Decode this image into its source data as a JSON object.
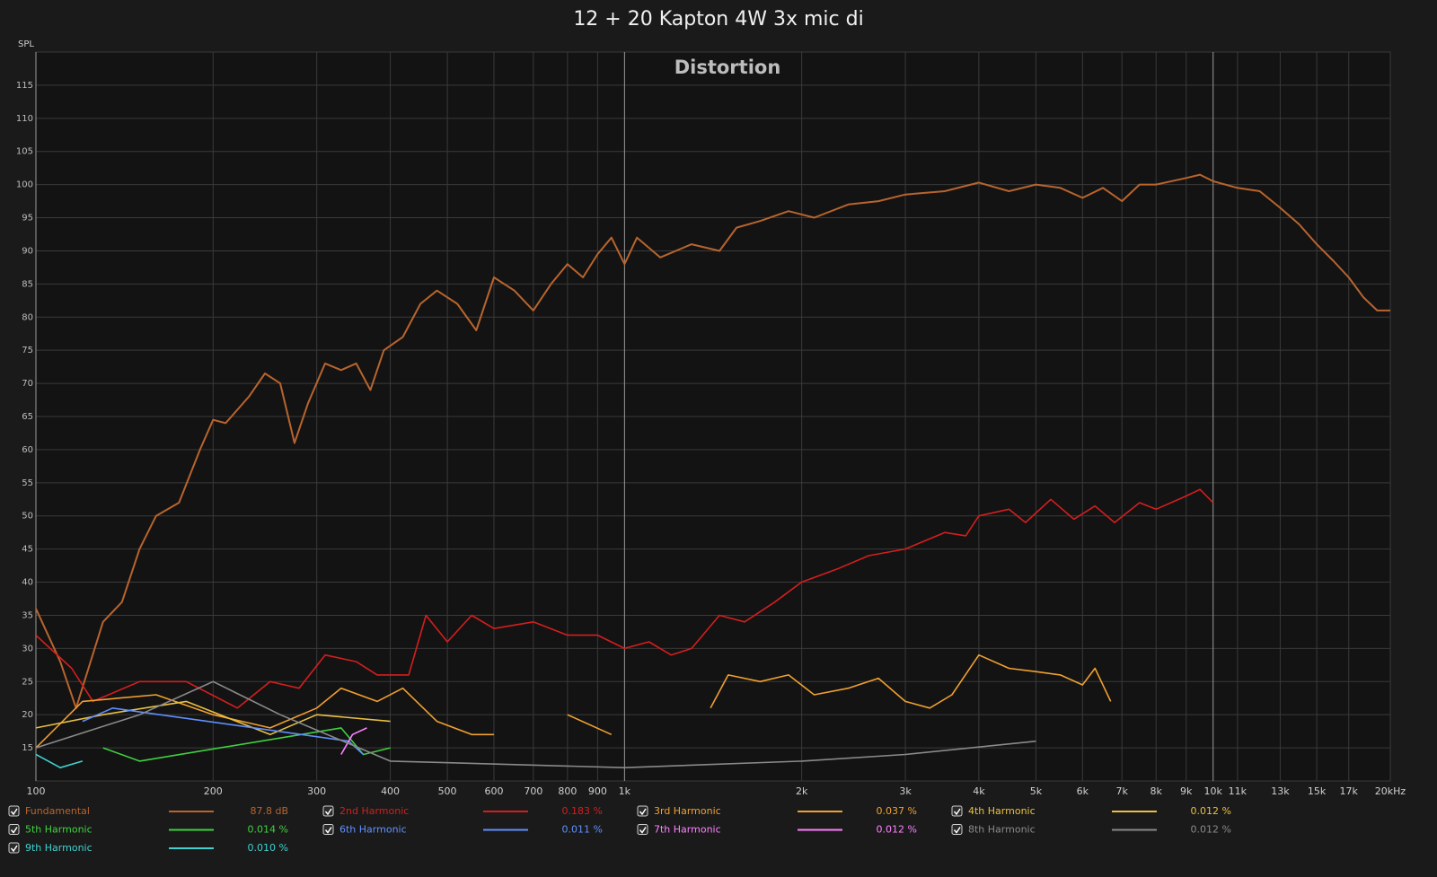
{
  "chart_data": {
    "type": "line",
    "title": "12 + 20 Kapton 4W 3x mic di",
    "subtitle": "Distortion",
    "y_label": "SPL",
    "log_x": true,
    "grid": true,
    "xlim": [
      100,
      20000
    ],
    "ylim": [
      10,
      120
    ],
    "xticks": [
      100,
      200,
      300,
      400,
      500,
      600,
      700,
      800,
      900,
      {
        "value": 1000,
        "label": "1k"
      },
      {
        "value": 2000,
        "label": "2k"
      },
      {
        "value": 3000,
        "label": "3k"
      },
      {
        "value": 4000,
        "label": "4k"
      },
      {
        "value": 5000,
        "label": "5k"
      },
      {
        "value": 6000,
        "label": "6k"
      },
      {
        "value": 7000,
        "label": "7k"
      },
      {
        "value": 8000,
        "label": "8k"
      },
      {
        "value": 9000,
        "label": "9k"
      },
      {
        "value": 10000,
        "label": "10k"
      },
      {
        "value": 11000,
        "label": "11k"
      },
      {
        "value": 13000,
        "label": "13k"
      },
      {
        "value": 15000,
        "label": "15k"
      },
      {
        "value": 17000,
        "label": "17k"
      },
      {
        "value": 20000,
        "label": "20kHz"
      }
    ],
    "yticks": [
      15,
      20,
      25,
      30,
      35,
      40,
      45,
      50,
      55,
      60,
      65,
      70,
      75,
      80,
      85,
      90,
      95,
      100,
      105,
      110,
      115
    ],
    "series": [
      {
        "name": "Fundamental",
        "reading": "87.8 dB",
        "color": "#b8642e",
        "x": [
          100,
          110,
          117,
          130,
          140,
          150,
          160,
          175,
          190,
          200,
          210,
          230,
          245,
          260,
          275,
          290,
          310,
          330,
          350,
          370,
          390,
          420,
          450,
          480,
          520,
          560,
          600,
          650,
          700,
          750,
          800,
          850,
          900,
          950,
          1000,
          1050,
          1150,
          1300,
          1450,
          1550,
          1700,
          1900,
          2100,
          2400,
          2700,
          3000,
          3500,
          4000,
          4500,
          5000,
          5500,
          6000,
          6500,
          7000,
          7500,
          8000,
          9000,
          9500,
          10000,
          11000,
          12000,
          13000,
          14000,
          15000,
          16000,
          17000,
          18000,
          19000,
          20000
        ],
        "values": [
          36,
          28,
          21,
          34,
          37,
          45,
          50,
          52,
          60,
          64.5,
          64,
          68,
          71.5,
          70,
          61,
          67,
          73,
          72,
          73,
          69,
          75,
          77,
          82,
          84,
          82,
          78,
          86,
          84,
          81,
          85,
          88,
          86,
          89.5,
          92,
          88,
          92,
          89,
          91,
          90,
          93.5,
          94.5,
          96,
          95,
          97,
          97.5,
          98.5,
          99,
          100.3,
          99,
          100,
          99.5,
          98,
          99.5,
          97.5,
          100,
          100,
          101,
          101.5,
          100.5,
          99.5,
          99,
          96.5,
          94,
          91,
          88.5,
          86,
          83,
          81,
          81
        ]
      },
      {
        "name": "2nd Harmonic",
        "reading": "0.183 %",
        "color": "#d41e1e",
        "x": [
          100,
          115,
          125,
          150,
          180,
          220,
          250,
          280,
          310,
          350,
          380,
          430,
          460,
          500,
          550,
          600,
          700,
          800,
          900,
          1000,
          1100,
          1200,
          1300,
          1450,
          1600,
          1800,
          2000,
          2300,
          2600,
          3000,
          3500,
          3800,
          4000,
          4500,
          4800,
          5300,
          5800,
          6300,
          6800,
          7500,
          8000,
          9000,
          9500,
          10000
        ],
        "values": [
          32,
          27,
          22,
          25,
          25,
          21,
          25,
          24,
          29,
          28,
          26,
          26,
          35,
          31,
          35,
          33,
          34,
          32,
          32,
          30,
          31,
          29,
          30,
          35,
          34,
          37,
          40,
          42,
          44,
          45,
          47.5,
          47,
          50,
          51,
          49,
          52.5,
          49.5,
          51.5,
          49,
          52,
          51,
          53,
          54,
          52
        ]
      },
      {
        "name": "3rd Harmonic",
        "reading": "0.037 %",
        "color": "#f0a030",
        "x": [
          100,
          120,
          160,
          200,
          250,
          300,
          330,
          380,
          420,
          480,
          550,
          600,
          650,
          800,
          950,
          1200,
          1400,
          1500,
          1700,
          1900,
          2100,
          2400,
          2700,
          3000,
          3300,
          3600,
          4000,
          4500,
          5000,
          5500,
          6000,
          6300,
          6700
        ],
        "values": [
          15,
          22,
          23,
          20,
          18,
          21,
          24,
          22,
          24,
          19,
          17,
          17,
          null,
          20,
          17,
          null,
          21,
          26,
          25,
          26,
          23,
          24,
          25.5,
          22,
          21,
          23,
          29,
          27,
          26.5,
          26,
          24.5,
          27,
          22
        ]
      },
      {
        "name": "4th Harmonic",
        "reading": "0.012 %",
        "color": "#e8c040",
        "x": [
          100,
          130,
          180,
          250,
          300,
          400
        ],
        "values": [
          18,
          20,
          22,
          17,
          20,
          19
        ]
      },
      {
        "name": "5th Harmonic",
        "reading": "0.014 %",
        "color": "#40d040",
        "x": [
          130,
          150,
          330,
          360,
          400
        ],
        "values": [
          15,
          13,
          18,
          14,
          15
        ]
      },
      {
        "name": "6th Harmonic",
        "reading": "0.011 %",
        "color": "#6090ff",
        "x": [
          120,
          135,
          340,
          360
        ],
        "values": [
          19,
          21,
          16,
          14
        ]
      },
      {
        "name": "7th Harmonic",
        "reading": "0.012 %",
        "color": "#ff80ff",
        "x": [
          330,
          345,
          365
        ],
        "values": [
          14,
          17,
          18
        ]
      },
      {
        "name": "8th Harmonic",
        "reading": "0.012 %",
        "color": "#8a8a8a",
        "x": [
          100,
          150,
          200,
          260,
          400,
          1000,
          2000,
          3000,
          5000
        ],
        "values": [
          15,
          20,
          25,
          20,
          13,
          12,
          13,
          14,
          16
        ]
      },
      {
        "name": "9th Harmonic",
        "reading": "0.010 %",
        "color": "#40d0d0",
        "x": [
          100,
          110,
          120
        ],
        "values": [
          14,
          12,
          13
        ]
      }
    ]
  }
}
